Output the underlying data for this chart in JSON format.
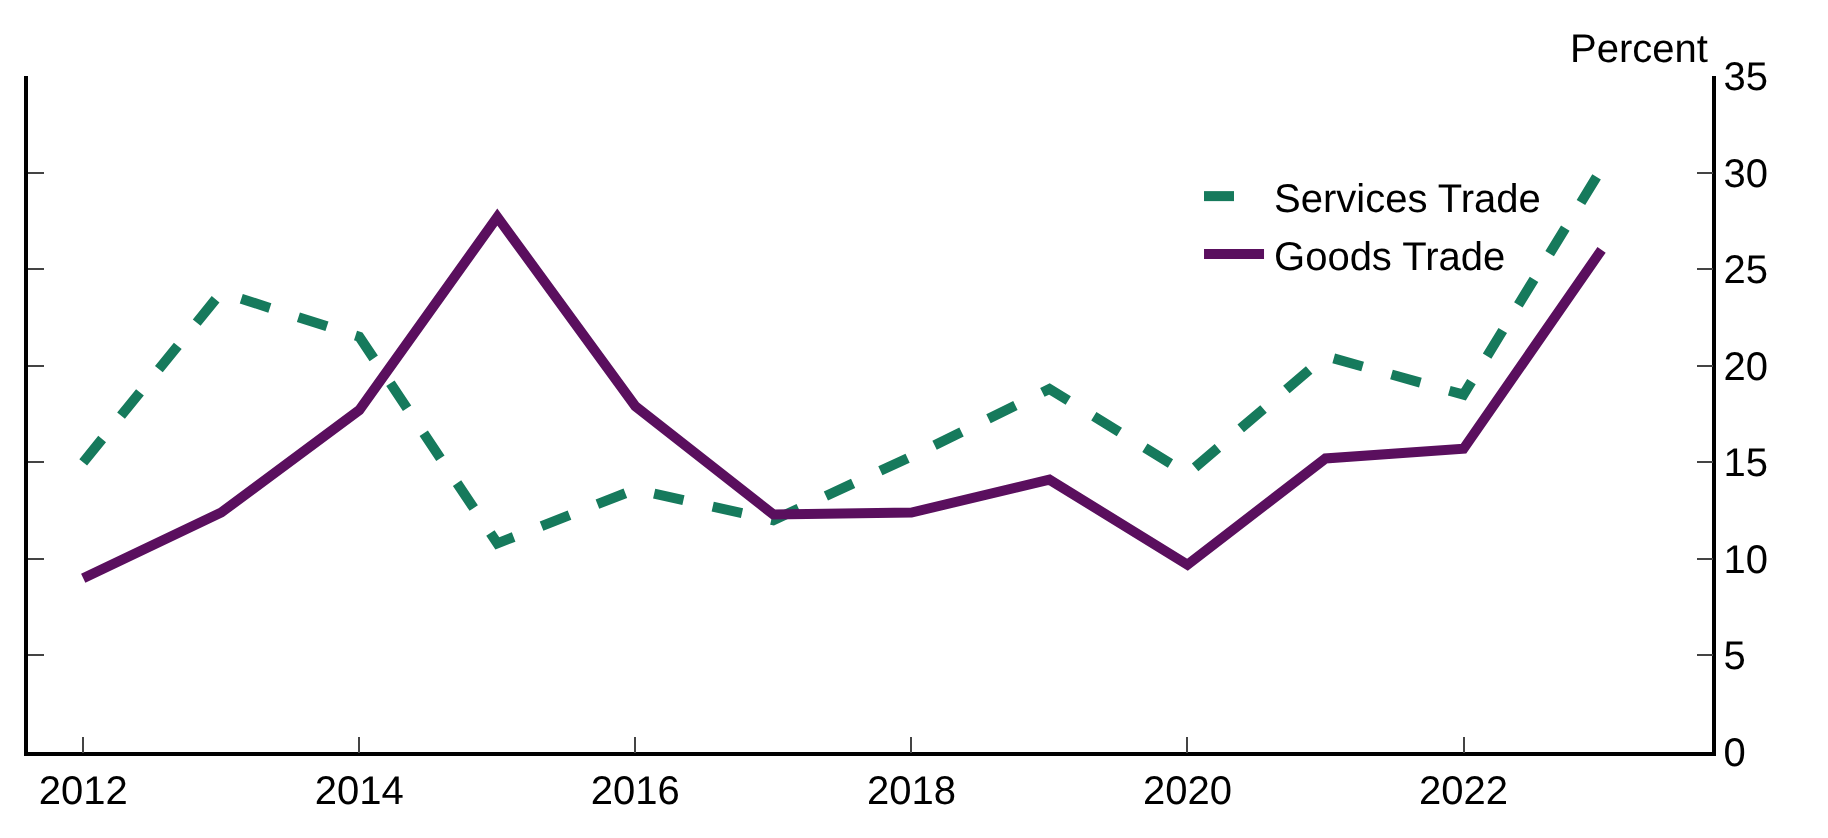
{
  "chart_data": {
    "type": "line",
    "ylabel": "Percent",
    "x": [
      2012,
      2013,
      2014,
      2015,
      2016,
      2017,
      2018,
      2019,
      2020,
      2021,
      2022,
      2023
    ],
    "series": [
      {
        "name": "Services Trade",
        "color": "#167a5c",
        "line_style": "dashed",
        "values": [
          15,
          23.8,
          21.5,
          10.8,
          13.6,
          12,
          15.3,
          18.8,
          14.4,
          20.5,
          18.5,
          30.2
        ]
      },
      {
        "name": "Goods Trade",
        "color": "#5a0f5e",
        "line_style": "solid",
        "values": [
          9,
          12.4,
          17.7,
          27.7,
          17.9,
          12.3,
          12.4,
          14.1,
          9.7,
          15.2,
          15.7,
          26
        ]
      }
    ],
    "xlim": [
      2011.6,
      2023.8
    ],
    "xticks": [
      2012,
      2014,
      2016,
      2018,
      2020,
      2022
    ],
    "ylim": [
      0,
      35
    ],
    "yticks": [
      0,
      5,
      10,
      15,
      20,
      25,
      30,
      35
    ],
    "legend": "top right",
    "marker": "none"
  }
}
